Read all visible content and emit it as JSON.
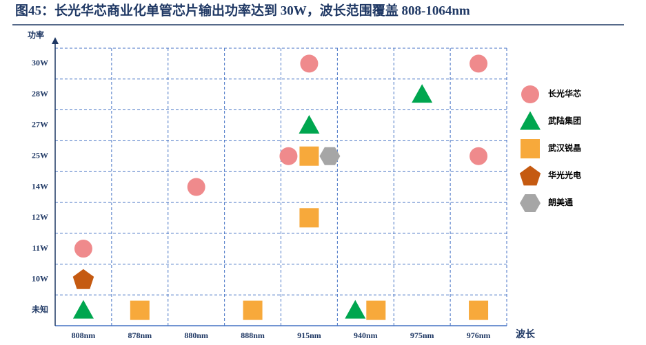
{
  "chart_data": {
    "type": "categorical-scatter",
    "title": "图45：长光华芯商业化单管芯片输出功率达到 30W，波长范围覆盖 808-1064nm",
    "y_label": "功率",
    "x_label": "波长",
    "categories": [
      "808nm",
      "878nm",
      "880nm",
      "888nm",
      "915nm",
      "940nm",
      "975nm",
      "976nm"
    ],
    "y_categories": [
      "未知",
      "10W",
      "11W",
      "12W",
      "14W",
      "25W",
      "27W",
      "28W",
      "30W"
    ],
    "grid": true,
    "series": [
      {
        "name": "长光华芯",
        "color": "#ef8a8c",
        "marker": "circle",
        "x": [
          "808nm",
          "880nm",
          "915nm",
          "915nm",
          "976nm",
          "976nm"
        ],
        "y": [
          "11W",
          "14W",
          "30W",
          "25W",
          "30W",
          "25W"
        ]
      },
      {
        "name": "武陆集团",
        "color": "#00a64f",
        "marker": "triangle",
        "x": [
          "808nm",
          "915nm",
          "940nm",
          "975nm"
        ],
        "y": [
          "未知",
          "27W",
          "未知",
          "28W"
        ]
      },
      {
        "name": "武汉锐晶",
        "color": "#f7a93b",
        "marker": "square",
        "x": [
          "878nm",
          "888nm",
          "915nm",
          "915nm",
          "940nm",
          "976nm"
        ],
        "y": [
          "未知",
          "未知",
          "25W",
          "12W",
          "未知",
          "未知"
        ]
      },
      {
        "name": "华光光电",
        "color": "#c55a11",
        "marker": "pentagon",
        "x": [
          "808nm"
        ],
        "y": [
          "10W"
        ]
      },
      {
        "name": "朗美通",
        "color": "#a6a6a6",
        "marker": "hexagon",
        "x": [
          "915nm"
        ],
        "y": [
          "25W"
        ]
      }
    ]
  }
}
